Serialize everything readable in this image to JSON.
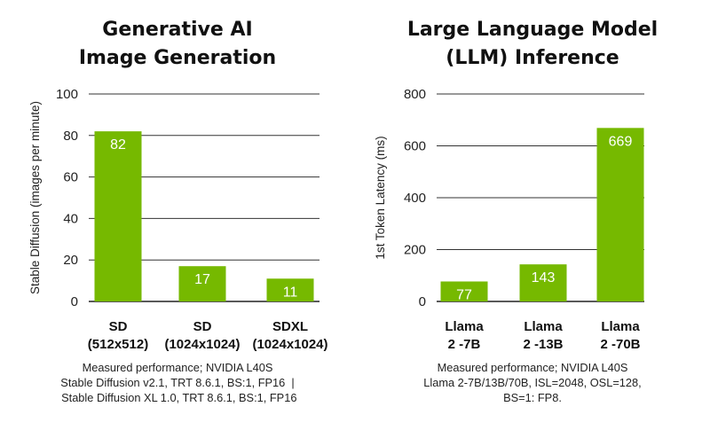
{
  "chart_data": [
    {
      "type": "bar",
      "title": [
        "Generative AI",
        "Image Generation"
      ],
      "xlabel": "",
      "ylabel": "Stable Diffusion (images per minute)",
      "ylim": [
        0,
        100
      ],
      "yticks": [
        0,
        20,
        40,
        60,
        80,
        100
      ],
      "grid": true,
      "categories": [
        [
          "SD",
          "(512x512)"
        ],
        [
          "SD",
          "(1024x1024)"
        ],
        [
          "SDXL",
          "(1024x1024)"
        ]
      ],
      "values": [
        82,
        17,
        11
      ],
      "bar_color": "#76b900",
      "footnote": [
        "Measured performance; NVIDIA L40S",
        "Stable Diffusion v2.1, TRT 8.6.1, BS:1, FP16  |",
        " Stable Diffusion XL 1.0, TRT 8.6.1, BS:1, FP16"
      ]
    },
    {
      "type": "bar",
      "title": [
        "Large Language Model",
        "(LLM) Inference"
      ],
      "xlabel": "",
      "ylabel": "1st Token Latency (ms)",
      "ylim": [
        0,
        800
      ],
      "yticks": [
        0,
        200,
        400,
        600,
        800
      ],
      "grid": true,
      "categories": [
        [
          "Llama",
          "2 -7B"
        ],
        [
          "Llama",
          "2 -13B"
        ],
        [
          "Llama",
          "2 -70B"
        ]
      ],
      "values": [
        77,
        143,
        669
      ],
      "bar_color": "#76b900",
      "footnote": [
        "Measured performance; NVIDIA L40S",
        "Llama 2-7B/13B/70B, ISL=2048, OSL=128,",
        "BS=1: FP8."
      ]
    }
  ]
}
